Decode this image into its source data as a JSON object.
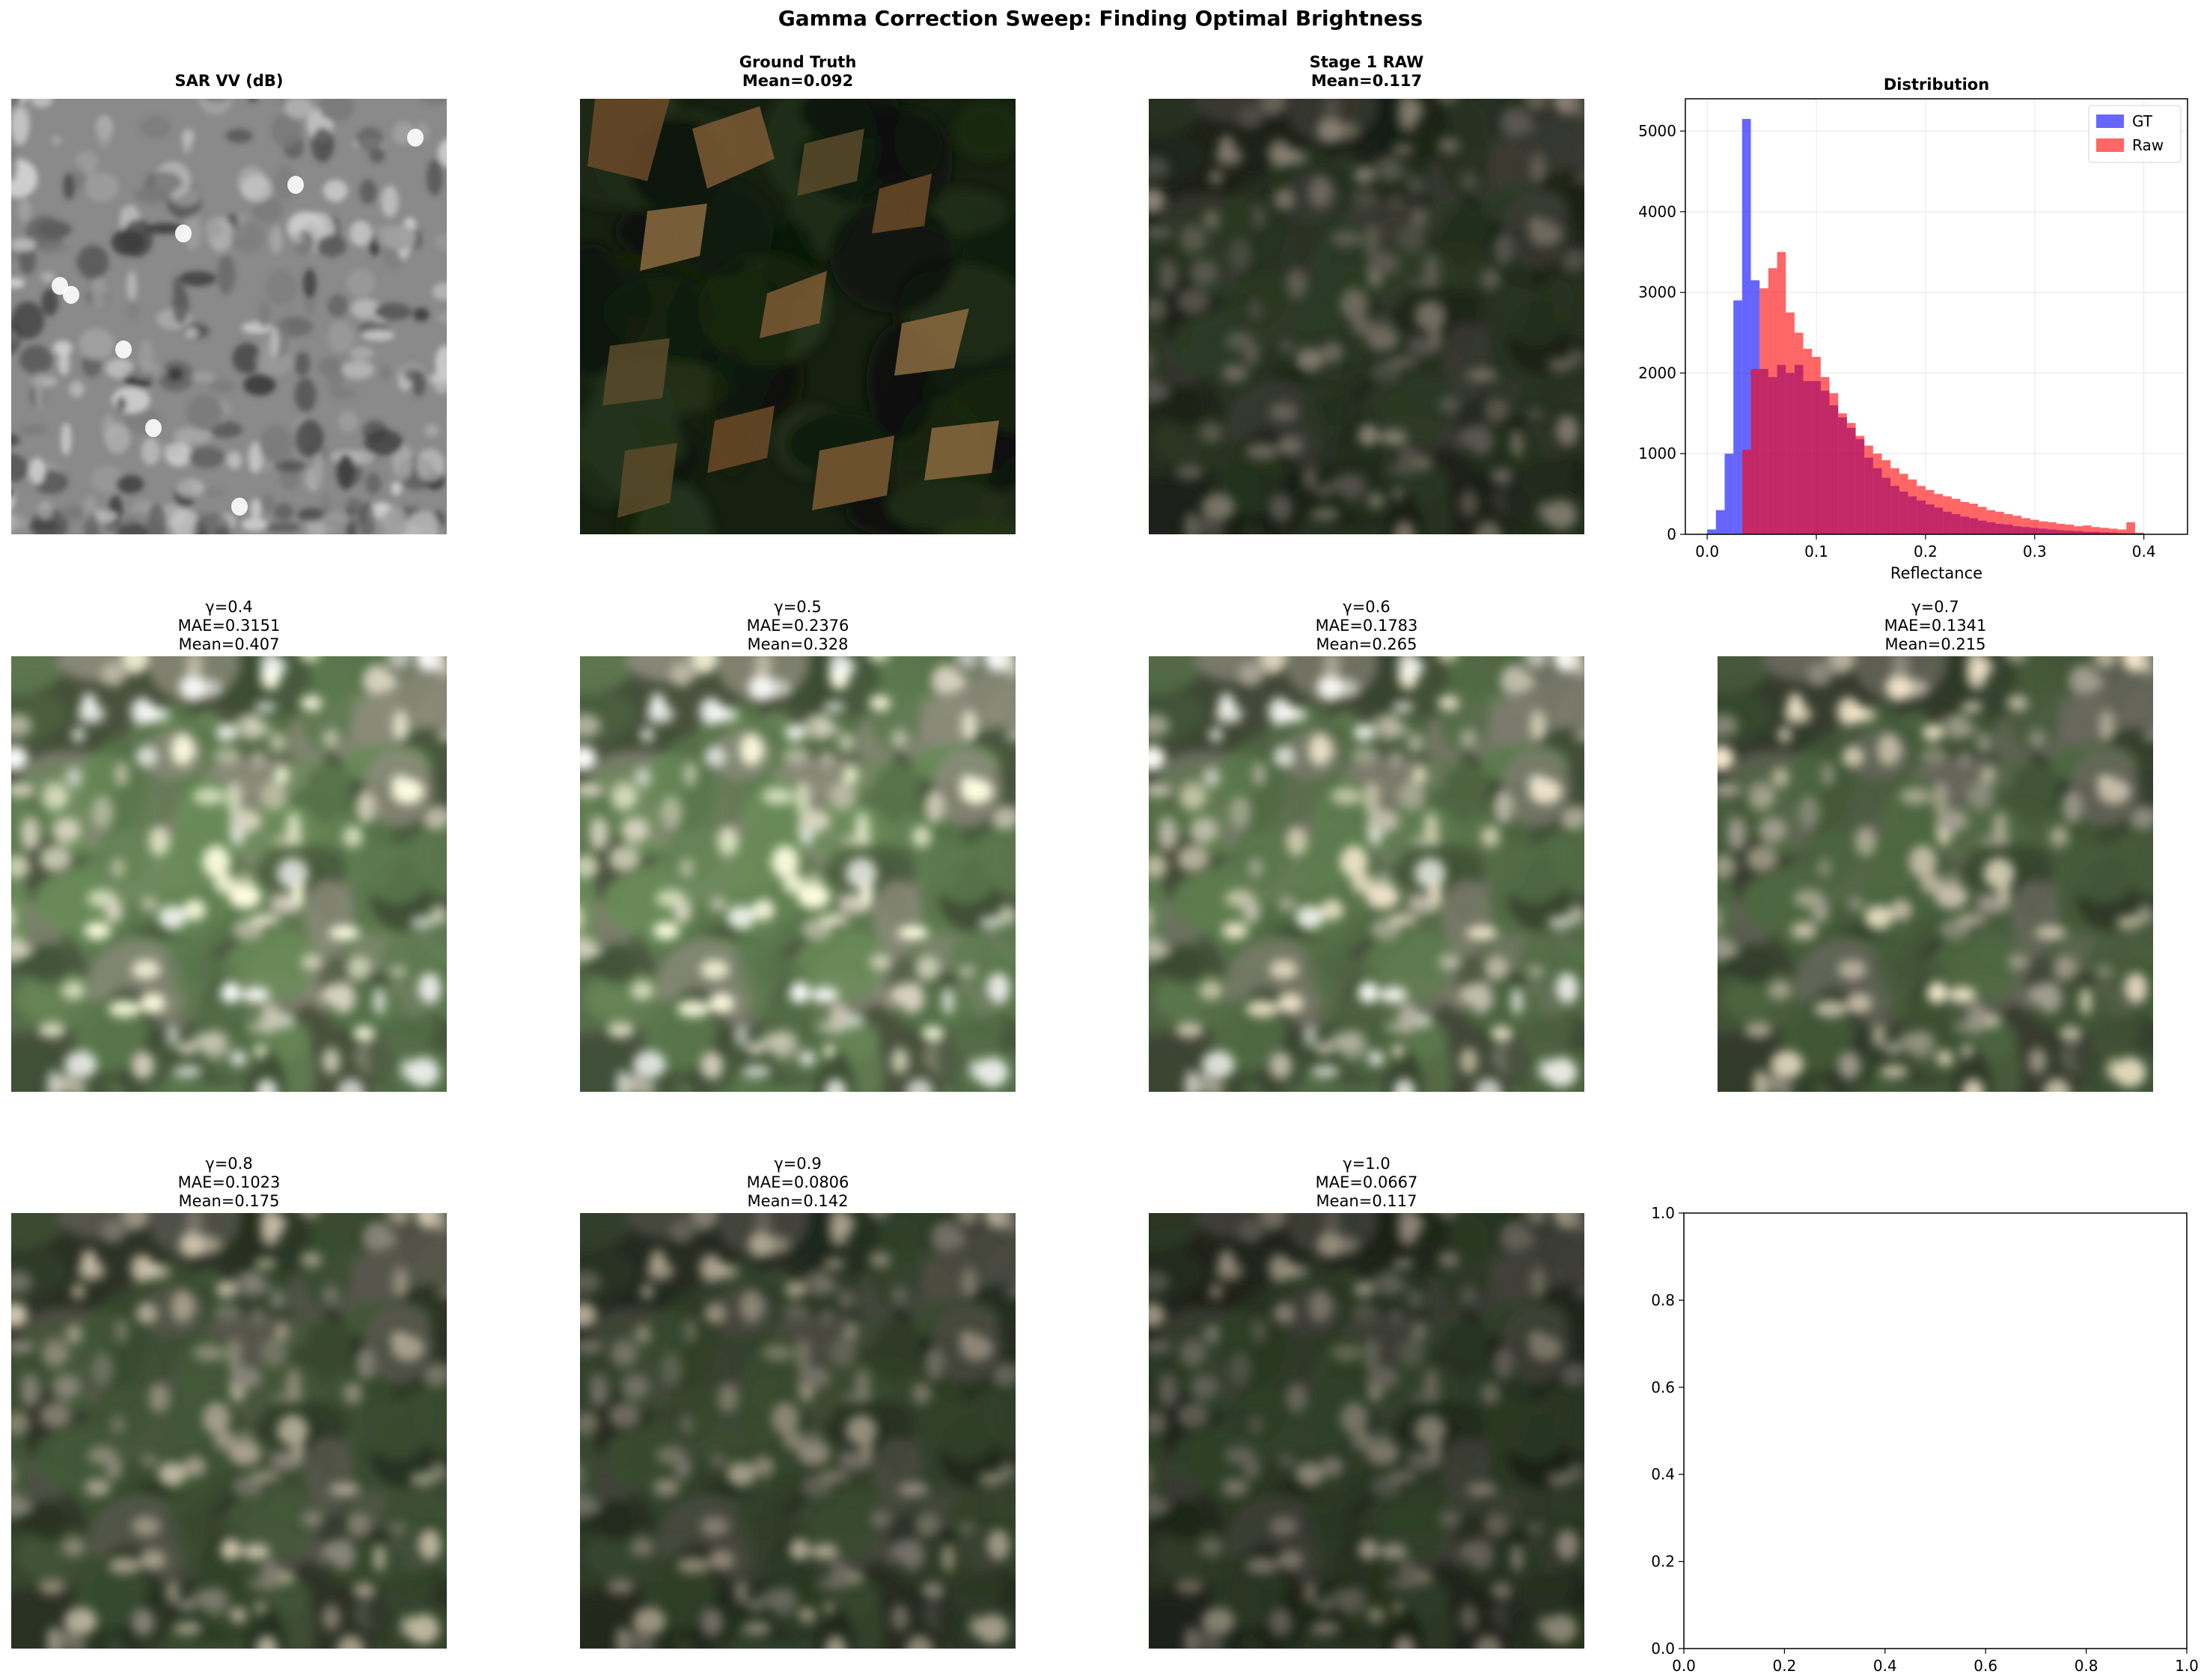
{
  "suptitle": "Gamma Correction Sweep: Finding Optimal Brightness",
  "panels": [
    {
      "title": "SAR VV (dB)",
      "kind": "sar"
    },
    {
      "title": "Ground Truth\nMean=0.092",
      "kind": "gt"
    },
    {
      "title": "Stage 1 RAW\nMean=0.117",
      "kind": "raw"
    },
    {
      "title": "γ=0.4\nMAE=0.3151\nMean=0.407",
      "kind": "gamma",
      "gamma": 0.4,
      "mae": 0.3151,
      "mean": 0.407
    },
    {
      "title": "γ=0.5\nMAE=0.2376\nMean=0.328",
      "kind": "gamma",
      "gamma": 0.5,
      "mae": 0.2376,
      "mean": 0.328
    },
    {
      "title": "γ=0.6\nMAE=0.1783\nMean=0.265",
      "kind": "gamma",
      "gamma": 0.6,
      "mae": 0.1783,
      "mean": 0.265
    },
    {
      "title": "γ=0.7\nMAE=0.1341\nMean=0.215",
      "kind": "gamma",
      "gamma": 0.7,
      "mae": 0.1341,
      "mean": 0.215
    },
    {
      "title": "γ=0.8\nMAE=0.1023\nMean=0.175",
      "kind": "gamma",
      "gamma": 0.8,
      "mae": 0.1023,
      "mean": 0.175
    },
    {
      "title": "γ=0.9\nMAE=0.0806\nMean=0.142",
      "kind": "gamma",
      "gamma": 0.9,
      "mae": 0.0806,
      "mean": 0.142
    },
    {
      "title": "γ=1.0\nMAE=0.0667\nMean=0.117",
      "kind": "gamma",
      "gamma": 1.0,
      "mae": 0.0667,
      "mean": 0.117
    }
  ],
  "chart_data": [
    {
      "type": "bar",
      "title": "Distribution",
      "xlabel": "Reflectance",
      "ylabel": "",
      "xlim": [
        -0.02,
        0.44
      ],
      "ylim": [
        0,
        5400
      ],
      "xticks": [
        "0.0",
        "0.1",
        "0.2",
        "0.3",
        "0.4"
      ],
      "yticks": [
        "0",
        "1000",
        "2000",
        "3000",
        "4000",
        "5000"
      ],
      "grid": true,
      "legend": "top-right",
      "bin_width": 0.008,
      "series": [
        {
          "name": "GT",
          "color": "#0000ff",
          "opacity": 0.6,
          "x": [
            0.0,
            0.008,
            0.016,
            0.024,
            0.032,
            0.04,
            0.048,
            0.056,
            0.064,
            0.072,
            0.08,
            0.088,
            0.096,
            0.104,
            0.112,
            0.12,
            0.128,
            0.136,
            0.144,
            0.152,
            0.16,
            0.168,
            0.176,
            0.184,
            0.192,
            0.2,
            0.208,
            0.216,
            0.224,
            0.232,
            0.24,
            0.248,
            0.256,
            0.264,
            0.272,
            0.28,
            0.288,
            0.296,
            0.304,
            0.312,
            0.32,
            0.328,
            0.336,
            0.344,
            0.352,
            0.36,
            0.368,
            0.376,
            0.384,
            0.392
          ],
          "values": [
            60,
            300,
            1000,
            2900,
            5150,
            3150,
            2050,
            1950,
            2100,
            2000,
            2100,
            1900,
            1900,
            1780,
            1600,
            1450,
            1320,
            1180,
            950,
            820,
            700,
            600,
            530,
            470,
            420,
            370,
            330,
            280,
            250,
            220,
            200,
            170,
            150,
            130,
            120,
            100,
            90,
            80,
            70,
            60,
            50,
            45,
            40,
            30,
            30,
            25,
            20,
            15,
            12,
            10
          ]
        },
        {
          "name": "Raw",
          "color": "#ff0000",
          "opacity": 0.6,
          "x": [
            0.032,
            0.04,
            0.048,
            0.056,
            0.064,
            0.072,
            0.08,
            0.088,
            0.096,
            0.104,
            0.112,
            0.12,
            0.128,
            0.136,
            0.144,
            0.152,
            0.16,
            0.168,
            0.176,
            0.184,
            0.192,
            0.2,
            0.208,
            0.216,
            0.224,
            0.232,
            0.24,
            0.248,
            0.256,
            0.264,
            0.272,
            0.28,
            0.288,
            0.296,
            0.304,
            0.312,
            0.32,
            0.328,
            0.336,
            0.344,
            0.352,
            0.36,
            0.368,
            0.376,
            0.384,
            0.392
          ],
          "values": [
            1050,
            2050,
            3050,
            3300,
            3500,
            2750,
            2500,
            2300,
            2200,
            1950,
            1750,
            1500,
            1380,
            1220,
            1100,
            1000,
            920,
            820,
            750,
            680,
            600,
            550,
            500,
            470,
            440,
            400,
            380,
            340,
            300,
            280,
            250,
            230,
            200,
            180,
            160,
            150,
            130,
            120,
            100,
            110,
            90,
            80,
            70,
            60,
            150,
            20
          ]
        }
      ]
    },
    {
      "type": "scatter",
      "title": "",
      "xlabel": "",
      "ylabel": "",
      "xlim": [
        0,
        1
      ],
      "ylim": [
        0,
        1
      ],
      "xticks": [
        "0.0",
        "0.2",
        "0.4",
        "0.6",
        "0.8",
        "1.0"
      ],
      "yticks": [
        "0.0",
        "0.2",
        "0.4",
        "0.6",
        "0.8",
        "1.0"
      ],
      "grid": false,
      "series": []
    }
  ]
}
